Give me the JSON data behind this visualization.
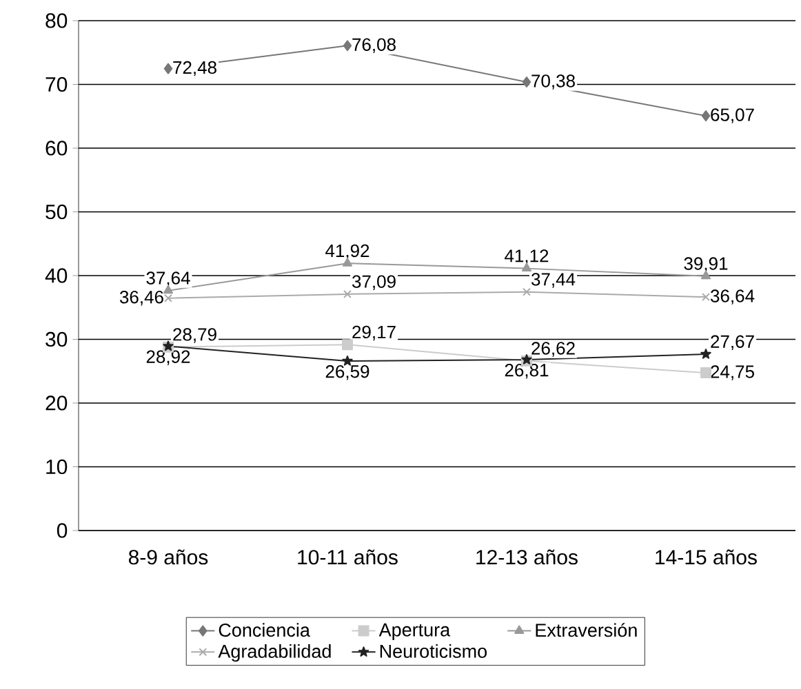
{
  "chart_data": {
    "type": "line",
    "categories": [
      "8-9 años",
      "10-11 años",
      "12-13 años",
      "14-15 años"
    ],
    "ylim": [
      0,
      80
    ],
    "yticks": [
      0,
      10,
      20,
      30,
      40,
      50,
      60,
      70,
      80
    ],
    "grid": "y",
    "legend": "bottom",
    "series": [
      {
        "name": "Conciencia",
        "color": "#777777",
        "marker": "diamond",
        "values": [
          72.48,
          76.08,
          70.38,
          65.07
        ],
        "value_labels": [
          "72,48",
          "76,08",
          "70,38",
          "65,07"
        ]
      },
      {
        "name": "Apertura",
        "color": "#cccccc",
        "marker": "square",
        "values": [
          28.79,
          29.17,
          26.62,
          24.75
        ],
        "value_labels": [
          "28,79",
          "29,17",
          "26,62",
          "24,75"
        ]
      },
      {
        "name": "Extraversión",
        "color": "#999999",
        "marker": "triangle",
        "values": [
          37.64,
          41.92,
          41.12,
          39.91
        ],
        "value_labels": [
          "37,64",
          "41,92",
          "41,12",
          "39,91"
        ]
      },
      {
        "name": "Agradabilidad",
        "color": "#aaaaaa",
        "marker": "cross",
        "values": [
          36.46,
          37.09,
          37.44,
          36.64
        ],
        "value_labels": [
          "36,46",
          "37,09",
          "37,44",
          "36,64"
        ]
      },
      {
        "name": "Neuroticismo",
        "color": "#222222",
        "marker": "star",
        "values": [
          28.92,
          26.59,
          26.81,
          27.67
        ],
        "value_labels": [
          "28,92",
          "26,59",
          "26,81",
          "27,67"
        ]
      }
    ]
  }
}
